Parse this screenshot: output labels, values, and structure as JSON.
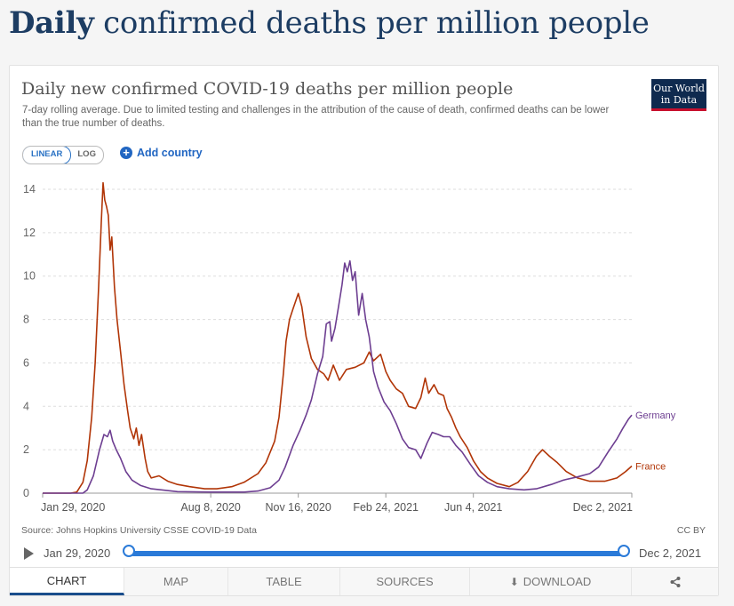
{
  "page": {
    "title_bold": "Daily",
    "title_rest": " confirmed deaths per million people"
  },
  "card": {
    "chart_title": "Daily new confirmed COVID-19 deaths per million people",
    "subtitle": "7-day rolling average. Due to limited testing and challenges in the attribution of the cause of death, confirmed deaths can be lower than the true number of deaths.",
    "logo_line1": "Our World",
    "logo_line2": "in Data",
    "scale_linear": "LINEAR",
    "scale_log": "LOG",
    "add_country": "Add country",
    "add_country_icon": "plus-circle-icon",
    "source": "Source: Johns Hopkins University CSSE COVID-19 Data",
    "license": "CC BY"
  },
  "timeline": {
    "start": "Jan 29, 2020",
    "end": "Dec 2, 2021",
    "play_icon": "play-icon"
  },
  "tabs": [
    {
      "label": "CHART",
      "active": true
    },
    {
      "label": "MAP"
    },
    {
      "label": "TABLE"
    },
    {
      "label": "SOURCES"
    },
    {
      "label": "DOWNLOAD",
      "icon": "download-icon"
    },
    {
      "label": "",
      "icon": "share-icon"
    }
  ],
  "chart_data": {
    "type": "line",
    "title": "Daily new confirmed COVID-19 deaths per million people",
    "ylim": [
      0,
      14
    ],
    "yticks": [
      0,
      2,
      4,
      6,
      8,
      10,
      12,
      14
    ],
    "xlim": [
      "2020-01-29",
      "2021-12-02"
    ],
    "xticks": [
      "Jan 29, 2020",
      "Aug 8, 2020",
      "Nov 16, 2020",
      "Feb 24, 2021",
      "Jun 4, 2021",
      "Dec 2, 2021"
    ],
    "xtick_dates": [
      "2020-01-29",
      "2020-08-08",
      "2020-11-16",
      "2021-02-24",
      "2021-06-04",
      "2021-12-02"
    ],
    "grid": true,
    "legend": "line-end labels",
    "series": [
      {
        "name": "France",
        "color": "#b13507",
        "points": [
          [
            "2020-01-29",
            0
          ],
          [
            "2020-03-01",
            0
          ],
          [
            "2020-03-08",
            0.05
          ],
          [
            "2020-03-15",
            0.5
          ],
          [
            "2020-03-20",
            1.5
          ],
          [
            "2020-03-25",
            3.5
          ],
          [
            "2020-03-29",
            6.0
          ],
          [
            "2020-04-02",
            9.5
          ],
          [
            "2020-04-05",
            12.5
          ],
          [
            "2020-04-07",
            14.3
          ],
          [
            "2020-04-09",
            13.5
          ],
          [
            "2020-04-11",
            13.2
          ],
          [
            "2020-04-13",
            12.8
          ],
          [
            "2020-04-15",
            11.2
          ],
          [
            "2020-04-17",
            11.8
          ],
          [
            "2020-04-20",
            9.5
          ],
          [
            "2020-04-23",
            8.0
          ],
          [
            "2020-04-27",
            6.5
          ],
          [
            "2020-05-01",
            5.0
          ],
          [
            "2020-05-05",
            3.8
          ],
          [
            "2020-05-08",
            3.0
          ],
          [
            "2020-05-12",
            2.5
          ],
          [
            "2020-05-15",
            3.0
          ],
          [
            "2020-05-18",
            2.2
          ],
          [
            "2020-05-21",
            2.7
          ],
          [
            "2020-05-25",
            1.6
          ],
          [
            "2020-05-28",
            1.0
          ],
          [
            "2020-06-01",
            0.7
          ],
          [
            "2020-06-10",
            0.8
          ],
          [
            "2020-06-20",
            0.55
          ],
          [
            "2020-07-01",
            0.4
          ],
          [
            "2020-07-15",
            0.3
          ],
          [
            "2020-08-01",
            0.2
          ],
          [
            "2020-08-15",
            0.2
          ],
          [
            "2020-09-01",
            0.3
          ],
          [
            "2020-09-15",
            0.5
          ],
          [
            "2020-10-01",
            0.9
          ],
          [
            "2020-10-10",
            1.4
          ],
          [
            "2020-10-20",
            2.4
          ],
          [
            "2020-10-25",
            3.5
          ],
          [
            "2020-10-30",
            5.5
          ],
          [
            "2020-11-02",
            7.0
          ],
          [
            "2020-11-06",
            8.0
          ],
          [
            "2020-11-10",
            8.5
          ],
          [
            "2020-11-16",
            9.2
          ],
          [
            "2020-11-20",
            8.6
          ],
          [
            "2020-11-25",
            7.2
          ],
          [
            "2020-12-01",
            6.2
          ],
          [
            "2020-12-08",
            5.7
          ],
          [
            "2020-12-15",
            5.5
          ],
          [
            "2020-12-20",
            5.2
          ],
          [
            "2020-12-26",
            5.9
          ],
          [
            "2021-01-02",
            5.2
          ],
          [
            "2021-01-10",
            5.7
          ],
          [
            "2021-01-20",
            5.8
          ],
          [
            "2021-01-30",
            6.0
          ],
          [
            "2021-02-05",
            6.5
          ],
          [
            "2021-02-10",
            6.1
          ],
          [
            "2021-02-18",
            6.4
          ],
          [
            "2021-02-24",
            5.6
          ],
          [
            "2021-03-01",
            5.2
          ],
          [
            "2021-03-08",
            4.8
          ],
          [
            "2021-03-15",
            4.6
          ],
          [
            "2021-03-22",
            4.0
          ],
          [
            "2021-03-30",
            3.9
          ],
          [
            "2021-04-05",
            4.4
          ],
          [
            "2021-04-10",
            5.3
          ],
          [
            "2021-04-14",
            4.6
          ],
          [
            "2021-04-20",
            5.0
          ],
          [
            "2021-04-25",
            4.6
          ],
          [
            "2021-05-01",
            4.5
          ],
          [
            "2021-05-05",
            3.9
          ],
          [
            "2021-05-10",
            3.5
          ],
          [
            "2021-05-15",
            3.0
          ],
          [
            "2021-05-20",
            2.6
          ],
          [
            "2021-05-28",
            2.1
          ],
          [
            "2021-06-04",
            1.5
          ],
          [
            "2021-06-12",
            1.0
          ],
          [
            "2021-06-20",
            0.7
          ],
          [
            "2021-07-01",
            0.45
          ],
          [
            "2021-07-15",
            0.3
          ],
          [
            "2021-07-25",
            0.5
          ],
          [
            "2021-08-05",
            1.0
          ],
          [
            "2021-08-15",
            1.7
          ],
          [
            "2021-08-22",
            2.0
          ],
          [
            "2021-08-30",
            1.7
          ],
          [
            "2021-09-08",
            1.4
          ],
          [
            "2021-09-18",
            1.0
          ],
          [
            "2021-10-01",
            0.7
          ],
          [
            "2021-10-15",
            0.55
          ],
          [
            "2021-11-01",
            0.55
          ],
          [
            "2021-11-15",
            0.7
          ],
          [
            "2021-11-25",
            1.0
          ],
          [
            "2021-12-02",
            1.25
          ]
        ]
      },
      {
        "name": "Germany",
        "color": "#6d3e91",
        "points": [
          [
            "2020-01-29",
            0
          ],
          [
            "2020-03-15",
            0
          ],
          [
            "2020-03-20",
            0.15
          ],
          [
            "2020-03-27",
            0.8
          ],
          [
            "2020-04-03",
            2.0
          ],
          [
            "2020-04-08",
            2.7
          ],
          [
            "2020-04-12",
            2.6
          ],
          [
            "2020-04-15",
            2.9
          ],
          [
            "2020-04-18",
            2.4
          ],
          [
            "2020-04-22",
            2.0
          ],
          [
            "2020-04-27",
            1.6
          ],
          [
            "2020-05-03",
            1.0
          ],
          [
            "2020-05-10",
            0.6
          ],
          [
            "2020-05-20",
            0.35
          ],
          [
            "2020-06-01",
            0.2
          ],
          [
            "2020-07-01",
            0.07
          ],
          [
            "2020-08-08",
            0.05
          ],
          [
            "2020-09-15",
            0.05
          ],
          [
            "2020-10-01",
            0.1
          ],
          [
            "2020-10-15",
            0.25
          ],
          [
            "2020-10-25",
            0.6
          ],
          [
            "2020-11-01",
            1.2
          ],
          [
            "2020-11-10",
            2.2
          ],
          [
            "2020-11-18",
            2.9
          ],
          [
            "2020-11-25",
            3.6
          ],
          [
            "2020-12-01",
            4.3
          ],
          [
            "2020-12-08",
            5.5
          ],
          [
            "2020-12-14",
            6.3
          ],
          [
            "2020-12-18",
            7.8
          ],
          [
            "2020-12-22",
            7.9
          ],
          [
            "2020-12-24",
            7.0
          ],
          [
            "2020-12-28",
            7.6
          ],
          [
            "2021-01-01",
            8.6
          ],
          [
            "2021-01-05",
            9.6
          ],
          [
            "2021-01-08",
            10.6
          ],
          [
            "2021-01-11",
            10.2
          ],
          [
            "2021-01-14",
            10.7
          ],
          [
            "2021-01-17",
            9.8
          ],
          [
            "2021-01-20",
            10.2
          ],
          [
            "2021-01-24",
            8.2
          ],
          [
            "2021-01-28",
            9.2
          ],
          [
            "2021-02-01",
            8.0
          ],
          [
            "2021-02-05",
            7.2
          ],
          [
            "2021-02-10",
            5.6
          ],
          [
            "2021-02-15",
            4.9
          ],
          [
            "2021-02-22",
            4.2
          ],
          [
            "2021-03-01",
            3.8
          ],
          [
            "2021-03-08",
            3.2
          ],
          [
            "2021-03-15",
            2.5
          ],
          [
            "2021-03-22",
            2.1
          ],
          [
            "2021-03-30",
            2.0
          ],
          [
            "2021-04-05",
            1.6
          ],
          [
            "2021-04-12",
            2.3
          ],
          [
            "2021-04-18",
            2.8
          ],
          [
            "2021-04-25",
            2.7
          ],
          [
            "2021-05-01",
            2.6
          ],
          [
            "2021-05-08",
            2.6
          ],
          [
            "2021-05-15",
            2.2
          ],
          [
            "2021-05-22",
            1.9
          ],
          [
            "2021-06-01",
            1.3
          ],
          [
            "2021-06-10",
            0.8
          ],
          [
            "2021-06-20",
            0.5
          ],
          [
            "2021-07-01",
            0.3
          ],
          [
            "2021-07-15",
            0.2
          ],
          [
            "2021-08-01",
            0.15
          ],
          [
            "2021-08-15",
            0.2
          ],
          [
            "2021-09-01",
            0.4
          ],
          [
            "2021-09-15",
            0.6
          ],
          [
            "2021-10-01",
            0.75
          ],
          [
            "2021-10-15",
            0.9
          ],
          [
            "2021-10-25",
            1.2
          ],
          [
            "2021-11-05",
            1.9
          ],
          [
            "2021-11-15",
            2.5
          ],
          [
            "2021-11-22",
            3.0
          ],
          [
            "2021-11-28",
            3.4
          ],
          [
            "2021-12-02",
            3.6
          ]
        ]
      }
    ]
  }
}
